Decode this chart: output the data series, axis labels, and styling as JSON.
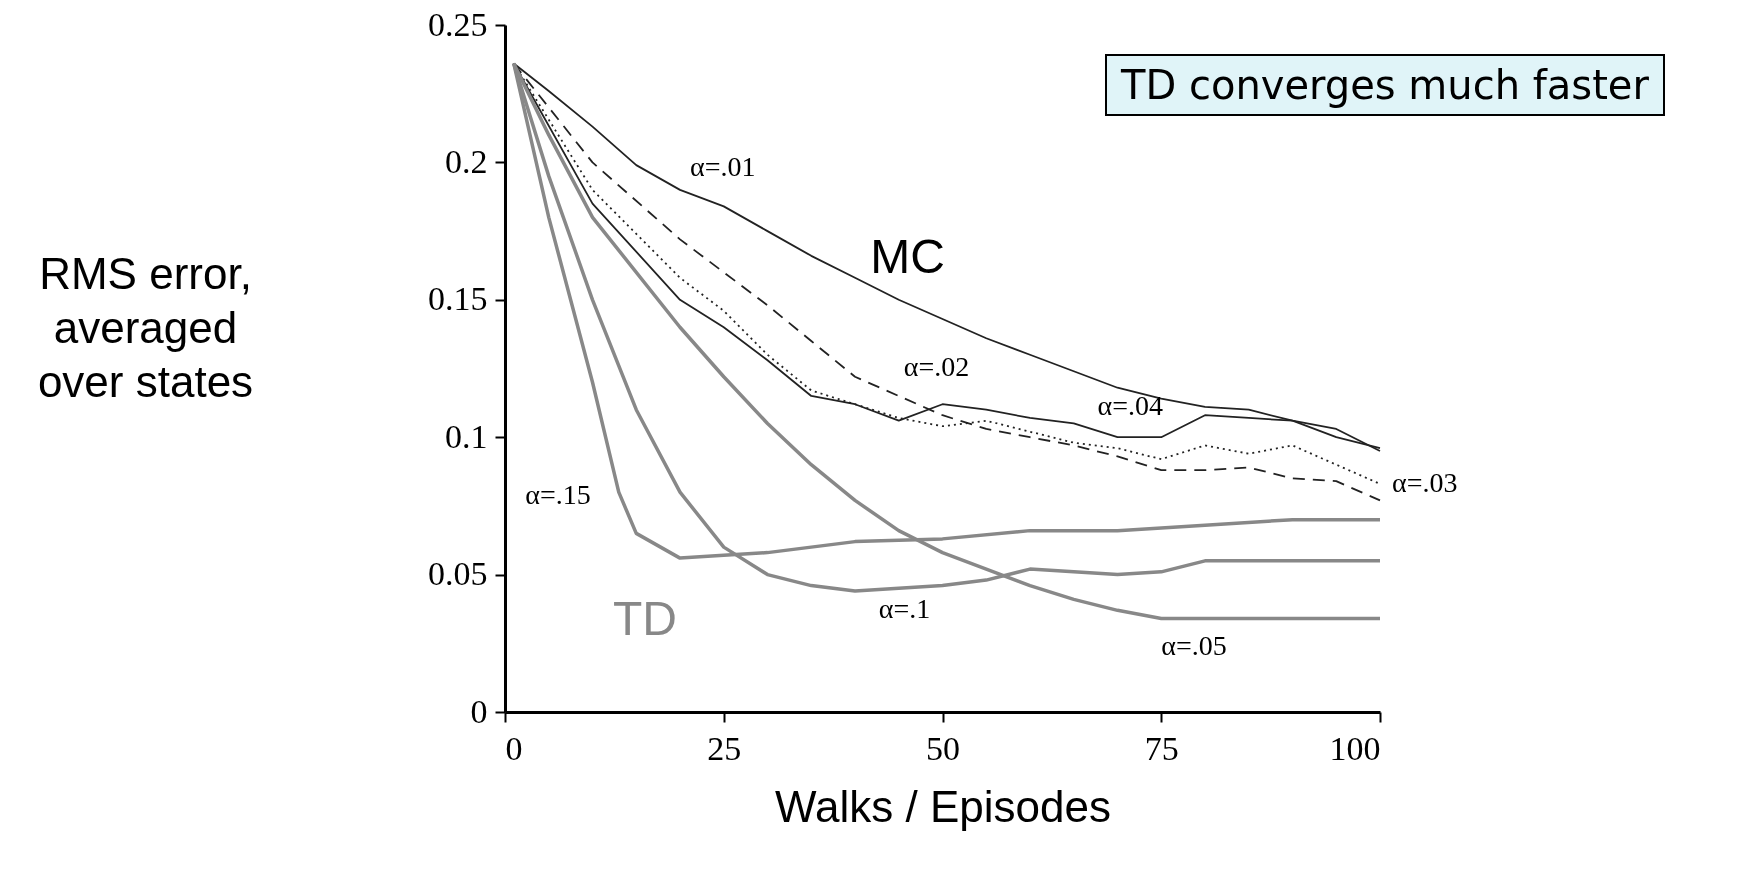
{
  "chart_data": {
    "type": "line",
    "xlabel": "Walks / Episodes",
    "ylabel": "RMS error, averaged over states",
    "xlim": [
      0,
      100
    ],
    "ylim": [
      0,
      0.25
    ],
    "xticks": [
      0,
      25,
      50,
      75,
      100
    ],
    "yticks": [
      0,
      0.05,
      0.1,
      0.15,
      0.2,
      0.25
    ],
    "grid": false,
    "marker": "none",
    "annotations": [
      "MC",
      "TD",
      "TD converges much faster"
    ],
    "series": [
      {
        "name": "α=.01",
        "color": "#222222",
        "line_style": "solid",
        "x": [
          1,
          5,
          10,
          15,
          20,
          25,
          30,
          35,
          40,
          45,
          50,
          55,
          60,
          65,
          70,
          75,
          80,
          85,
          90,
          95,
          100
        ],
        "values": [
          0.236,
          0.226,
          0.213,
          0.199,
          0.19,
          0.184,
          0.175,
          0.166,
          0.158,
          0.15,
          0.143,
          0.136,
          0.13,
          0.124,
          0.118,
          0.114,
          0.111,
          0.11,
          0.106,
          0.103,
          0.095
        ]
      },
      {
        "name": "α=.02",
        "color": "#222222",
        "line_style": "dashed",
        "x": [
          1,
          10,
          20,
          25,
          30,
          35,
          40,
          45,
          50,
          55,
          60,
          65,
          70,
          75,
          80,
          85,
          90,
          95,
          100
        ],
        "values": [
          0.236,
          0.2,
          0.172,
          0.16,
          0.148,
          0.135,
          0.122,
          0.115,
          0.108,
          0.103,
          0.1,
          0.097,
          0.093,
          0.088,
          0.088,
          0.089,
          0.085,
          0.084,
          0.077
        ]
      },
      {
        "name": "α=.03",
        "color": "#222222",
        "line_style": "dotted",
        "x": [
          1,
          10,
          20,
          25,
          30,
          35,
          40,
          45,
          50,
          55,
          60,
          65,
          70,
          75,
          80,
          85,
          90,
          95,
          100
        ],
        "values": [
          0.236,
          0.19,
          0.158,
          0.146,
          0.13,
          0.117,
          0.112,
          0.107,
          0.104,
          0.106,
          0.102,
          0.098,
          0.096,
          0.092,
          0.097,
          0.094,
          0.097,
          0.09,
          0.083
        ]
      },
      {
        "name": "α=.04",
        "color": "#222222",
        "line_style": "solid",
        "x": [
          1,
          10,
          20,
          25,
          30,
          35,
          40,
          45,
          50,
          55,
          60,
          65,
          70,
          75,
          80,
          85,
          90,
          95,
          100
        ],
        "values": [
          0.236,
          0.185,
          0.15,
          0.14,
          0.128,
          0.115,
          0.112,
          0.106,
          0.112,
          0.11,
          0.107,
          0.105,
          0.1,
          0.1,
          0.108,
          0.107,
          0.106,
          0.1,
          0.096
        ]
      },
      {
        "name": "α=.15",
        "color": "#888888",
        "line_style": "solid",
        "x": [
          1,
          5,
          10,
          13,
          15,
          20,
          25,
          30,
          40,
          50,
          60,
          70,
          80,
          90,
          100
        ],
        "values": [
          0.236,
          0.18,
          0.12,
          0.08,
          0.065,
          0.056,
          0.057,
          0.058,
          0.062,
          0.063,
          0.066,
          0.066,
          0.068,
          0.07,
          0.07
        ]
      },
      {
        "name": "α=.1",
        "color": "#888888",
        "line_style": "solid",
        "x": [
          1,
          5,
          10,
          15,
          20,
          25,
          30,
          35,
          40,
          45,
          50,
          55,
          60,
          70,
          75,
          80,
          90,
          100
        ],
        "values": [
          0.236,
          0.195,
          0.15,
          0.11,
          0.08,
          0.06,
          0.05,
          0.046,
          0.044,
          0.045,
          0.046,
          0.048,
          0.052,
          0.05,
          0.051,
          0.055,
          0.055,
          0.055
        ]
      },
      {
        "name": "α=.05",
        "color": "#888888",
        "line_style": "solid",
        "x": [
          1,
          5,
          10,
          20,
          25,
          30,
          35,
          40,
          45,
          50,
          55,
          60,
          65,
          70,
          75,
          80,
          90,
          100
        ],
        "values": [
          0.236,
          0.21,
          0.18,
          0.14,
          0.122,
          0.105,
          0.09,
          0.077,
          0.066,
          0.058,
          0.052,
          0.046,
          0.041,
          0.037,
          0.034,
          0.034,
          0.034,
          0.034
        ]
      }
    ]
  }
}
